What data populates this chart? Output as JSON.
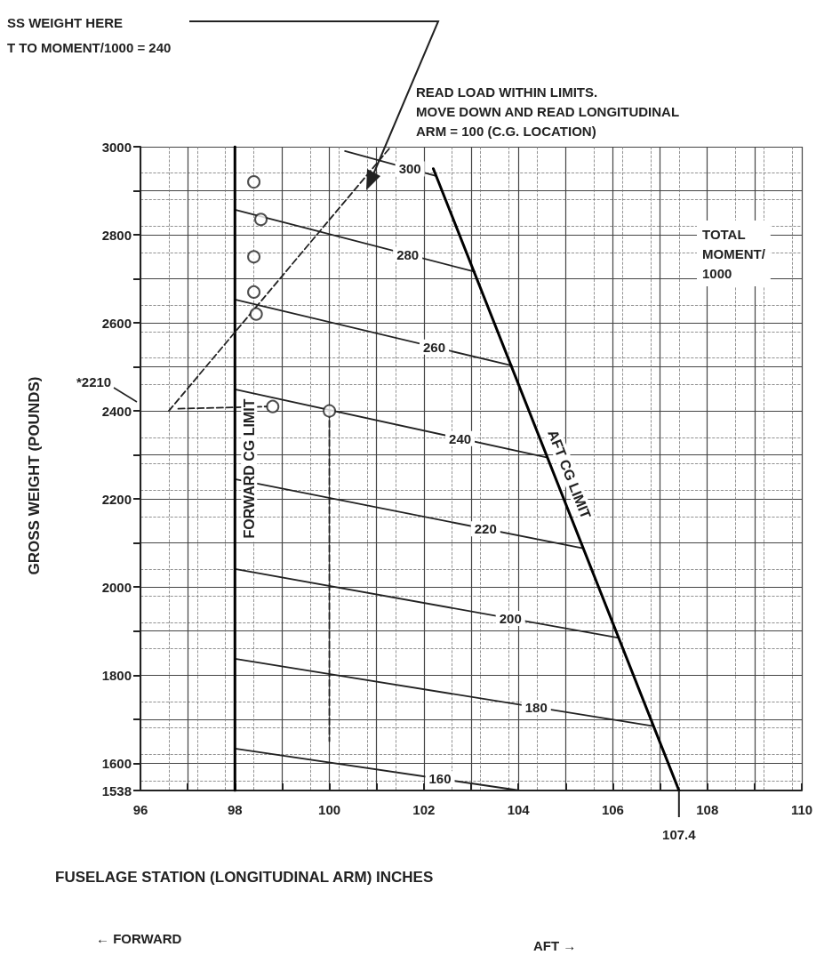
{
  "chart_data": {
    "type": "line",
    "xlabel": "FUSELAGE STATION (LONGITUDINAL ARM) INCHES",
    "ylabel": "GROSS WEIGHT (POUNDS)",
    "xlim": [
      96,
      110
    ],
    "xticks": [
      96,
      {
        "value": 97,
        "label": null
      },
      98,
      {
        "value": 99,
        "label": null
      },
      100,
      {
        "value": 101,
        "label": null
      },
      102,
      {
        "value": 103,
        "label": null
      },
      104,
      {
        "value": 105,
        "label": null
      },
      106,
      {
        "value": 107,
        "label": null
      },
      108,
      {
        "value": 109,
        "label": null
      },
      110
    ],
    "ylim": [
      1538,
      3000
    ],
    "yticks": [
      1538,
      1600,
      {
        "value": 1700,
        "label": null
      },
      1800,
      {
        "value": 1900,
        "label": null
      },
      2000,
      {
        "value": 2100,
        "label": null
      },
      2200,
      {
        "value": 2300,
        "label": null
      },
      2400,
      {
        "value": 2500,
        "label": null
      },
      2600,
      {
        "value": 2700,
        "label": null
      },
      2800,
      {
        "value": 2900,
        "label": null
      },
      3000
    ],
    "grid": true,
    "line_style": "solid",
    "marker": "none",
    "series": [
      {
        "name": "160",
        "color": "#222222",
        "x": [
          98,
          104.03
        ],
        "values": [
          1633,
          1538
        ]
      },
      {
        "name": "180",
        "color": "#222222",
        "x": [
          98,
          106.86
        ],
        "values": [
          1837,
          1684
        ]
      },
      {
        "name": "200",
        "color": "#222222",
        "x": [
          98,
          106.1
        ],
        "values": [
          2041,
          1885
        ]
      },
      {
        "name": "220",
        "color": "#222222",
        "x": [
          98,
          105.37
        ],
        "values": [
          2245,
          2088
        ]
      },
      {
        "name": "240",
        "color": "#222222",
        "x": [
          98,
          104.62
        ],
        "values": [
          2449,
          2294
        ]
      },
      {
        "name": "260",
        "color": "#222222",
        "x": [
          98,
          103.86
        ],
        "values": [
          2653,
          2503
        ]
      },
      {
        "name": "280",
        "color": "#222222",
        "x": [
          98,
          103.08
        ],
        "values": [
          2857,
          2716
        ]
      },
      {
        "name": "300",
        "color": "#222222",
        "x": [
          100.33,
          102.24
        ],
        "values": [
          2990,
          2934
        ]
      },
      {
        "name": "FORWARD CG LIMIT",
        "color": "#000000",
        "x": [
          98,
          98
        ],
        "values": [
          1538,
          3000
        ]
      },
      {
        "name": "AFT CG LIMIT",
        "color": "#000000",
        "x": [
          102.2,
          107.4
        ],
        "values": [
          2950,
          1538
        ]
      },
      {
        "color": "#222222",
        "line_style": "dashed",
        "x": [
          96.6,
          101.3
        ],
        "values": [
          2400,
          3000
        ]
      },
      {
        "color": "#222222",
        "line_style": "dashed",
        "x": [
          100,
          100
        ],
        "values": [
          2400,
          1650
        ]
      },
      {
        "color": "#222222",
        "line_style": "dashed",
        "x": [
          96.8,
          98.7
        ],
        "values": [
          2405,
          2410
        ]
      },
      {
        "type": "scatter",
        "marker": "circle",
        "color": "#222222",
        "x": [
          98.4,
          98.55,
          98.4,
          98.4,
          98.45,
          98.8,
          100
        ],
        "values": [
          2920,
          2835,
          2750,
          2670,
          2620,
          2410,
          2400
        ]
      }
    ],
    "annotations": [
      "SS WEIGHT HERE",
      "T TO MOMENT/1000 = 240",
      "READ LOAD WITHIN LIMITS.\nMOVE DOWN AND READ LONGITUDINAL\nARM = 100 (C.G. LOCATION)",
      "TOTAL\nMOMENT/\n1000",
      "← FORWARD",
      "AFT →",
      "*2210",
      {
        "text": "107.4",
        "x": 107.4,
        "y": 1538
      }
    ]
  }
}
